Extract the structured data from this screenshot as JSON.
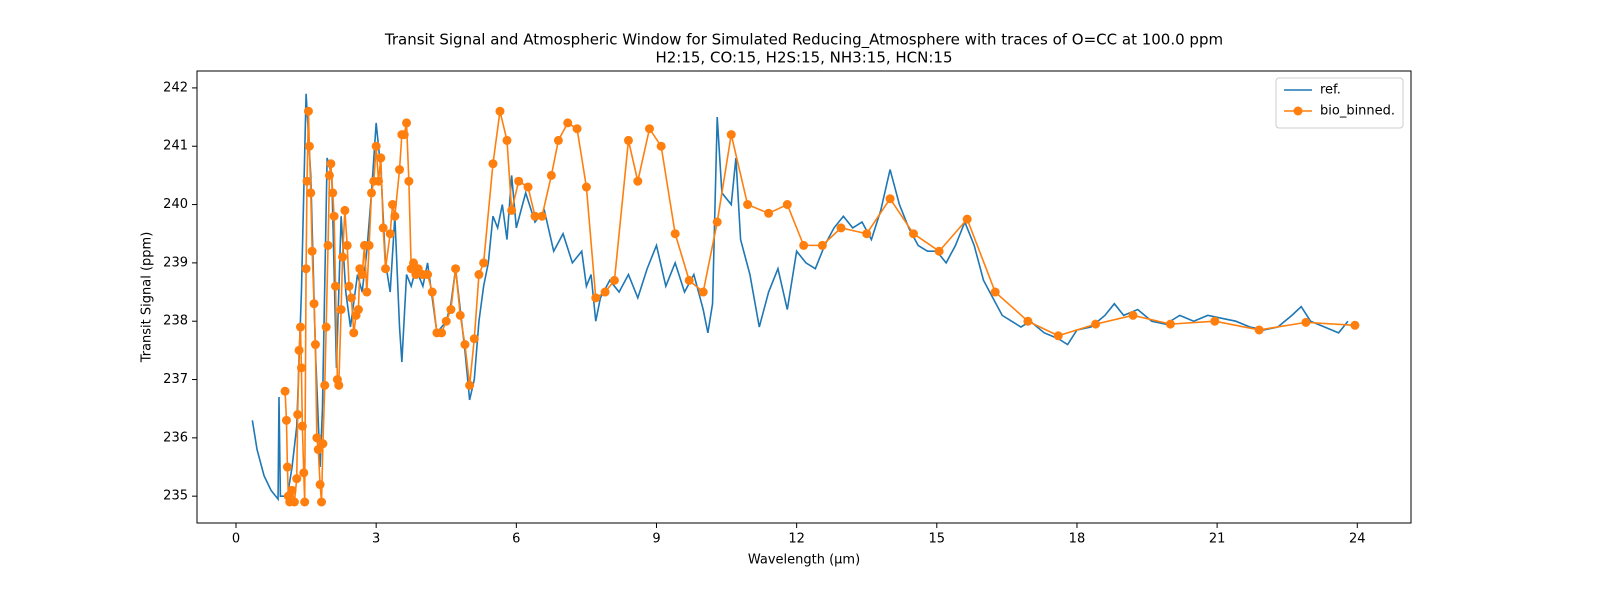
{
  "chart_data": {
    "type": "line",
    "title": "Transit Signal and Atmospheric Window for Simulated Reducing_Atmosphere with traces of O=CC at 100.0 ppm",
    "subtitle": "H2:15, CO:15, H2S:15, NH3:15, HCN:15",
    "xlabel": "Wavelength (μm)",
    "ylabel": "Transit Signal (ppm)",
    "xlim": [
      -0.835,
      25.15
    ],
    "ylim": [
      234.54,
      242.29
    ],
    "xticks": [
      0,
      3,
      6,
      9,
      12,
      15,
      18,
      21,
      24
    ],
    "yticks": [
      235,
      236,
      237,
      238,
      239,
      240,
      241,
      242
    ],
    "legend": "upper right",
    "series": [
      {
        "name": "ref.",
        "color": "#1f77b4",
        "marker": "none",
        "x": [
          0.35,
          0.45,
          0.6,
          0.75,
          0.9,
          0.92,
          0.95,
          1.1,
          1.2,
          1.3,
          1.4,
          1.5,
          1.6,
          1.7,
          1.8,
          1.85,
          1.95,
          2.05,
          2.15,
          2.25,
          2.35,
          2.45,
          2.6,
          2.7,
          2.8,
          2.9,
          3.0,
          3.1,
          3.2,
          3.3,
          3.4,
          3.5,
          3.55,
          3.65,
          3.75,
          3.85,
          4.0,
          4.1,
          4.2,
          4.3,
          4.5,
          4.6,
          4.7,
          4.8,
          4.9,
          5.0,
          5.1,
          5.2,
          5.3,
          5.4,
          5.5,
          5.6,
          5.7,
          5.8,
          5.9,
          6.0,
          6.2,
          6.4,
          6.6,
          6.8,
          7.0,
          7.2,
          7.4,
          7.5,
          7.6,
          7.7,
          7.8,
          8.0,
          8.2,
          8.4,
          8.6,
          8.8,
          9.0,
          9.2,
          9.4,
          9.6,
          9.8,
          10.0,
          10.1,
          10.2,
          10.3,
          10.4,
          10.6,
          10.7,
          10.8,
          11.0,
          11.2,
          11.4,
          11.6,
          11.8,
          12.0,
          12.2,
          12.4,
          12.6,
          12.8,
          13.0,
          13.2,
          13.4,
          13.6,
          13.8,
          14.0,
          14.2,
          14.4,
          14.6,
          14.8,
          15.0,
          15.2,
          15.4,
          15.6,
          15.8,
          16.0,
          16.2,
          16.4,
          16.6,
          16.8,
          17.0,
          17.3,
          17.6,
          17.8,
          18.0,
          18.3,
          18.6,
          18.8,
          19.0,
          19.3,
          19.6,
          19.9,
          20.2,
          20.5,
          20.8,
          21.1,
          21.4,
          21.7,
          22.0,
          22.3,
          22.6,
          22.8,
          23.0,
          23.3,
          23.6,
          23.8
        ],
        "values": [
          236.3,
          235.8,
          235.35,
          235.1,
          234.95,
          236.7,
          235.0,
          235.0,
          235.5,
          236.2,
          238.5,
          241.9,
          240.5,
          237.5,
          235.5,
          236.5,
          240.8,
          240.5,
          237.2,
          239.8,
          238.5,
          237.9,
          238.8,
          238.5,
          239.2,
          240.2,
          241.4,
          240.6,
          239.0,
          238.5,
          239.8,
          237.9,
          237.3,
          238.8,
          238.6,
          238.9,
          238.6,
          239.0,
          238.4,
          237.8,
          238.0,
          238.3,
          238.9,
          238.2,
          237.5,
          236.65,
          237.0,
          238.0,
          238.6,
          239.0,
          239.8,
          239.6,
          240.0,
          239.4,
          240.5,
          239.6,
          240.2,
          239.7,
          239.9,
          239.2,
          239.5,
          239.0,
          239.2,
          238.6,
          238.8,
          238.0,
          238.4,
          238.7,
          238.5,
          238.8,
          238.4,
          238.9,
          239.3,
          238.6,
          239.0,
          238.5,
          238.8,
          238.2,
          237.8,
          238.3,
          241.5,
          240.2,
          240.0,
          240.8,
          239.4,
          238.8,
          237.9,
          238.5,
          238.9,
          238.2,
          239.2,
          239.0,
          238.9,
          239.3,
          239.6,
          239.8,
          239.6,
          239.7,
          239.4,
          239.9,
          240.6,
          240.0,
          239.6,
          239.3,
          239.2,
          239.2,
          239.0,
          239.3,
          239.7,
          239.3,
          238.7,
          238.4,
          238.1,
          238.0,
          237.9,
          238.0,
          237.8,
          237.7,
          237.6,
          237.85,
          237.9,
          238.1,
          238.3,
          238.1,
          238.2,
          238.0,
          237.95,
          238.1,
          238.0,
          238.1,
          238.05,
          238.0,
          237.9,
          237.85,
          237.9,
          238.1,
          238.25,
          238.0,
          237.9,
          237.8,
          238.0
        ]
      },
      {
        "name": "bio_binned.",
        "color": "#ff7f0e",
        "marker": "o",
        "x": [
          1.05,
          1.08,
          1.1,
          1.12,
          1.15,
          1.2,
          1.25,
          1.3,
          1.32,
          1.35,
          1.38,
          1.4,
          1.42,
          1.45,
          1.47,
          1.5,
          1.52,
          1.55,
          1.57,
          1.6,
          1.63,
          1.67,
          1.7,
          1.73,
          1.76,
          1.8,
          1.83,
          1.86,
          1.9,
          1.93,
          1.97,
          2.0,
          2.03,
          2.07,
          2.1,
          2.13,
          2.17,
          2.2,
          2.25,
          2.28,
          2.33,
          2.38,
          2.42,
          2.47,
          2.52,
          2.57,
          2.62,
          2.65,
          2.7,
          2.75,
          2.8,
          2.85,
          2.9,
          2.95,
          3.0,
          3.05,
          3.1,
          3.15,
          3.2,
          3.3,
          3.35,
          3.4,
          3.5,
          3.55,
          3.6,
          3.65,
          3.7,
          3.75,
          3.8,
          3.85,
          3.9,
          4.0,
          4.1,
          4.2,
          4.3,
          4.4,
          4.5,
          4.6,
          4.7,
          4.8,
          4.9,
          5.0,
          5.1,
          5.2,
          5.3,
          5.5,
          5.65,
          5.8,
          5.9,
          6.05,
          6.25,
          6.4,
          6.55,
          6.75,
          6.9,
          7.1,
          7.3,
          7.5,
          7.7,
          7.9,
          8.1,
          8.4,
          8.6,
          8.85,
          9.1,
          9.4,
          9.7,
          10.0,
          10.3,
          10.6,
          10.95,
          11.4,
          11.8,
          12.15,
          12.55,
          12.95,
          13.5,
          14.0,
          14.5,
          15.05,
          15.65,
          16.25,
          16.95,
          17.6,
          18.4,
          19.2,
          20.0,
          20.95,
          21.9,
          22.9,
          23.95
        ],
        "values": [
          236.8,
          236.3,
          235.5,
          235.0,
          234.9,
          235.1,
          234.9,
          235.3,
          236.4,
          237.5,
          237.9,
          237.2,
          236.2,
          235.4,
          234.9,
          238.9,
          240.4,
          241.6,
          241.0,
          240.2,
          239.2,
          238.3,
          237.6,
          236.0,
          235.8,
          235.2,
          234.9,
          235.9,
          236.9,
          237.9,
          239.3,
          240.5,
          240.7,
          240.2,
          239.8,
          238.6,
          237.0,
          236.9,
          238.2,
          239.1,
          239.9,
          239.3,
          238.6,
          238.4,
          237.8,
          238.1,
          238.2,
          238.9,
          238.8,
          239.3,
          238.5,
          239.3,
          240.2,
          240.4,
          241.0,
          240.4,
          240.8,
          239.6,
          238.9,
          239.5,
          240.0,
          239.8,
          240.6,
          241.2,
          241.2,
          241.4,
          240.4,
          238.9,
          239.0,
          238.8,
          238.9,
          238.8,
          238.8,
          238.5,
          237.8,
          237.8,
          238.0,
          238.2,
          238.9,
          238.1,
          237.6,
          236.9,
          237.7,
          238.8,
          239.0,
          240.7,
          241.6,
          241.1,
          239.9,
          240.4,
          240.3,
          239.8,
          239.8,
          240.5,
          241.1,
          241.4,
          241.3,
          240.3,
          238.4,
          238.5,
          238.7,
          241.1,
          240.4,
          241.3,
          241.0,
          239.5,
          238.7,
          238.5,
          239.7,
          241.2,
          240.0,
          239.85,
          240.0,
          239.3,
          239.3,
          239.6,
          239.5,
          240.1,
          239.5,
          239.2,
          239.75,
          238.5,
          238.0,
          237.75,
          237.95,
          238.1,
          237.95,
          238.0,
          237.85,
          237.98,
          237.93
        ]
      }
    ]
  }
}
